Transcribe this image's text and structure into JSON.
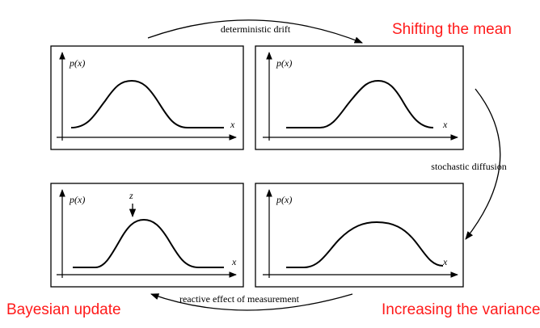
{
  "labels": {
    "top_arrow": "deterministic drift",
    "right_arrow": "stochastic diffusion",
    "bottom_arrow": "reactive effect of measurement"
  },
  "titles": {
    "shift": "Shifting the mean",
    "variance": "Increasing the variance",
    "bayes": "Bayesian update"
  },
  "panels": [
    {
      "y_label": "p(x)",
      "x_label": "x"
    },
    {
      "y_label": "p(x)",
      "x_label": "x"
    },
    {
      "y_label": "p(x)",
      "x_label": "x",
      "marker": "z"
    },
    {
      "y_label": "p(x)",
      "x_label": "x"
    }
  ],
  "colors": {
    "title": "#ff1a1a",
    "line": "#000000"
  }
}
